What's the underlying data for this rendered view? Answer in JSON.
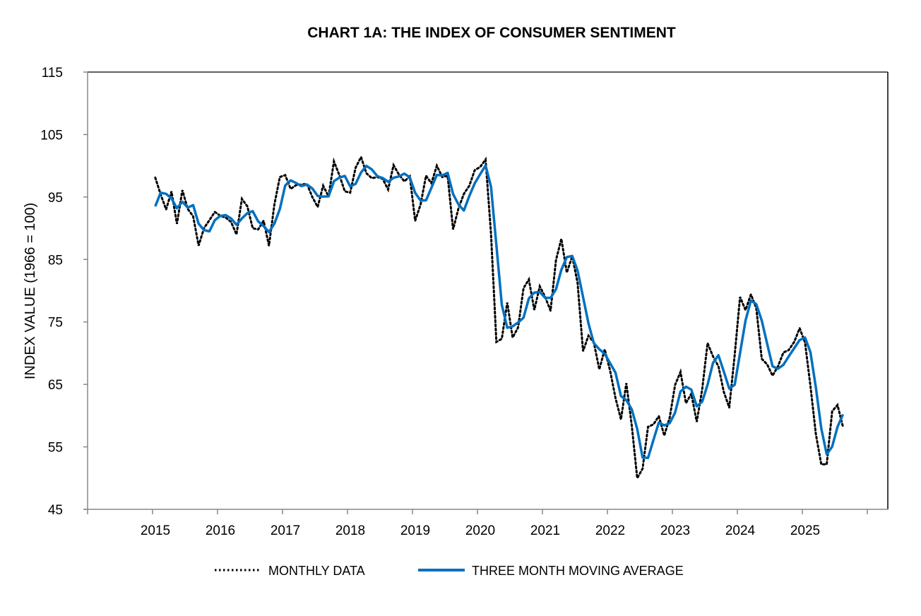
{
  "chart_data": {
    "type": "line",
    "title": "CHART 1A: THE INDEX OF CONSUMER SENTIMENT",
    "xlabel": "",
    "ylabel": "INDEX VALUE (1966 = 100)",
    "ylim": [
      45,
      115
    ],
    "yticks": [
      "45",
      "55",
      "65",
      "75",
      "85",
      "95",
      "105",
      "115"
    ],
    "xticks": [
      "2015",
      "2016",
      "2017",
      "2018",
      "2019",
      "2020",
      "2021",
      "2022",
      "2023",
      "2024",
      "2025"
    ],
    "x_start": "2015-01",
    "x_frequency": "monthly",
    "grid": false,
    "legend_position": "bottom",
    "series": [
      {
        "name": "MONTHLY DATA",
        "color": "#000000",
        "style": "dotted",
        "values": [
          98.1,
          95.4,
          93.0,
          95.9,
          90.7,
          96.1,
          93.1,
          91.9,
          87.2,
          90.0,
          91.3,
          92.6,
          92.0,
          91.7,
          91.0,
          89.0,
          94.7,
          93.5,
          90.0,
          89.8,
          91.2,
          87.2,
          93.8,
          98.2,
          98.5,
          96.3,
          96.9,
          97.0,
          97.1,
          95.0,
          93.4,
          96.8,
          95.1,
          100.7,
          98.5,
          95.9,
          95.7,
          99.7,
          101.4,
          98.8,
          98.0,
          98.2,
          97.9,
          96.2,
          100.1,
          98.6,
          97.5,
          98.3,
          91.2,
          93.8,
          98.4,
          97.2,
          100.0,
          98.2,
          98.4,
          89.8,
          93.2,
          95.5,
          96.8,
          99.3,
          99.8,
          101.0,
          89.1,
          71.8,
          72.3,
          78.1,
          72.5,
          74.1,
          80.4,
          81.8,
          76.9,
          80.7,
          79.0,
          76.8,
          84.9,
          88.3,
          82.9,
          85.5,
          81.2,
          70.3,
          72.8,
          71.7,
          67.4,
          70.6,
          67.2,
          62.8,
          59.4,
          65.2,
          58.4,
          50.0,
          51.5,
          58.2,
          58.6,
          59.9,
          56.8,
          59.7,
          64.9,
          67.0,
          62.0,
          63.5,
          59.0,
          64.2,
          71.6,
          69.5,
          67.9,
          63.8,
          61.3,
          69.7,
          79.0,
          76.9,
          79.4,
          77.2,
          69.1,
          68.2,
          66.4,
          67.9,
          70.1,
          70.5,
          71.8,
          74.0,
          71.7,
          64.7,
          57.0,
          52.2,
          52.2,
          60.7,
          61.7,
          58.2
        ]
      },
      {
        "name": "THREE MONTH MOVING AVERAGE",
        "color": "#0070C0",
        "style": "solid",
        "window": 3,
        "initial_values": [
          93.5,
          95.7
        ]
      }
    ]
  }
}
